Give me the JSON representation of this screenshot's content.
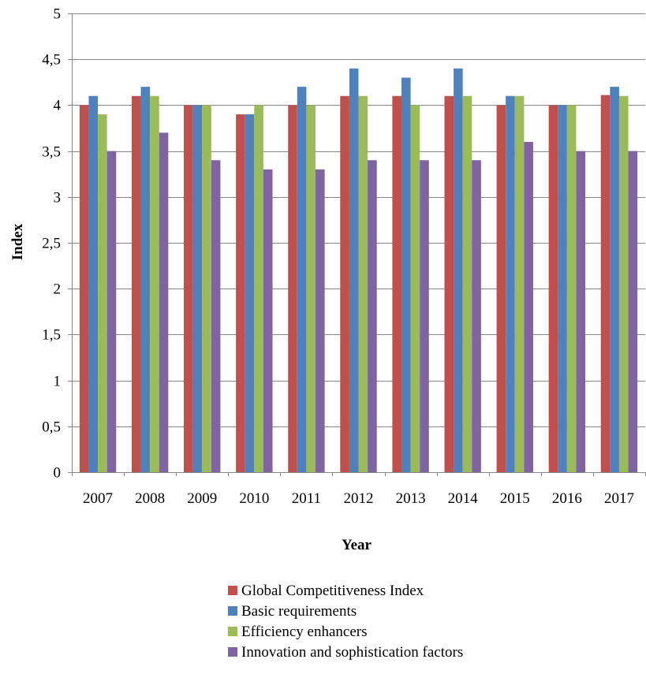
{
  "chart_data": {
    "type": "bar",
    "xlabel": "Year",
    "ylabel": "Index",
    "ylim": [
      0,
      5
    ],
    "yticks": [
      "0",
      "0,5",
      "1",
      "1,5",
      "2",
      "2,5",
      "3",
      "3,5",
      "4",
      "4,5",
      "5"
    ],
    "grid": true,
    "legend_position": "bottom",
    "categories": [
      "2007",
      "2008",
      "2009",
      "2010",
      "2011",
      "2012",
      "2013",
      "2014",
      "2015",
      "2016",
      "2017"
    ],
    "series": [
      {
        "name": "Global Competitiveness Index",
        "color": "#C0504D",
        "values": [
          4.0,
          4.1,
          4.0,
          3.9,
          4.0,
          4.1,
          4.1,
          4.1,
          4.0,
          4.0,
          4.11
        ]
      },
      {
        "name": "Basic requirements",
        "color": "#4F81BD",
        "values": [
          4.1,
          4.2,
          4.0,
          3.9,
          4.2,
          4.4,
          4.3,
          4.4,
          4.1,
          4.0,
          4.2
        ]
      },
      {
        "name": "Efficiency enhancers",
        "color": "#9BBB59",
        "values": [
          3.9,
          4.1,
          4.0,
          4.0,
          4.0,
          4.1,
          4.0,
          4.1,
          4.1,
          4.0,
          4.1
        ]
      },
      {
        "name": "Innovation and sophistication factors",
        "color": "#8064A2",
        "values": [
          3.5,
          3.7,
          3.4,
          3.3,
          3.3,
          3.4,
          3.4,
          3.4,
          3.6,
          3.5,
          3.5
        ]
      }
    ]
  }
}
